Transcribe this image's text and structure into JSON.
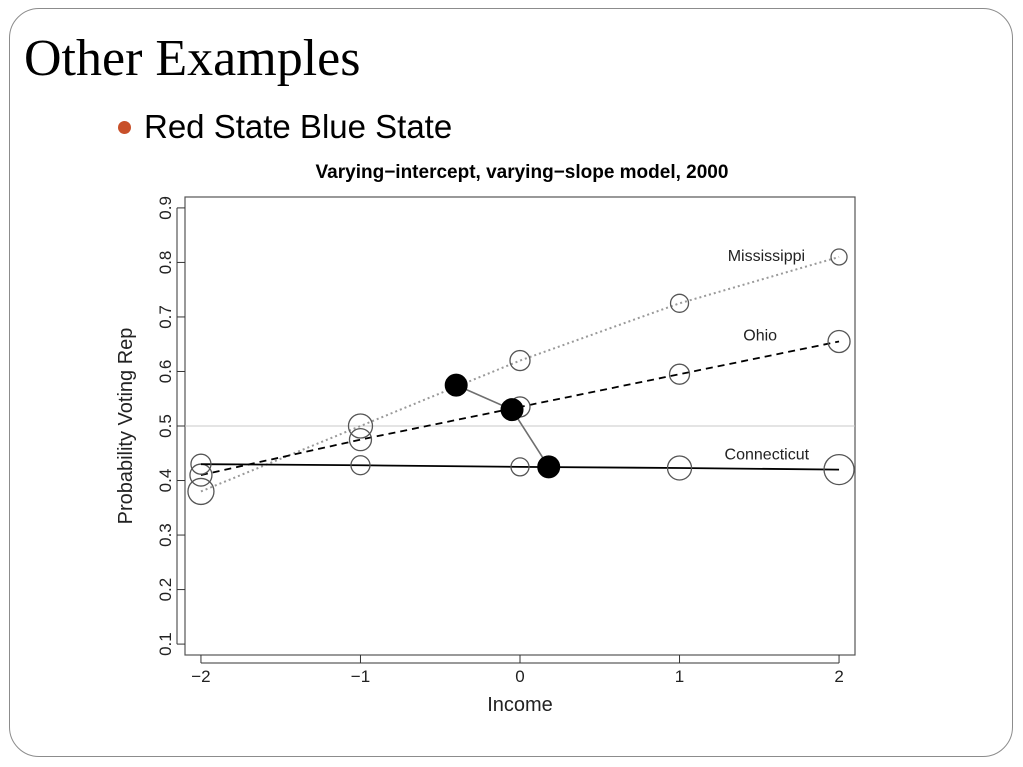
{
  "slide": {
    "title": "Other Examples",
    "bullet": "Red State Blue State",
    "bullet_color": "#c8502a"
  },
  "chart_data": {
    "type": "line",
    "title": "Varying−intercept, varying−slope model, 2000",
    "xlabel": "Income",
    "ylabel": "Probability Voting Rep",
    "xlim": [
      -2.1,
      2.1
    ],
    "ylim": [
      0.08,
      0.92
    ],
    "xticks": [
      -2,
      -1,
      0,
      1,
      2
    ],
    "xtick_labels": [
      "−2",
      "−1",
      "0",
      "1",
      "2"
    ],
    "yticks": [
      0.1,
      0.2,
      0.3,
      0.4,
      0.5,
      0.6,
      0.7,
      0.8,
      0.9
    ],
    "ytick_labels": [
      "0.1",
      "0.2",
      "0.3",
      "0.4",
      "0.5",
      "0.6",
      "0.7",
      "0.8",
      "0.9"
    ],
    "reference_line": 0.5,
    "series": [
      {
        "name": "Mississippi",
        "line_style": "dotted",
        "line_color": "#9a9a9a",
        "x": [
          -2,
          -1,
          0,
          1,
          2
        ],
        "y": [
          0.38,
          0.5,
          0.62,
          0.725,
          0.81
        ],
        "marker_scale": [
          1.3,
          1.2,
          1.0,
          0.9,
          0.8
        ]
      },
      {
        "name": "Ohio",
        "line_style": "dashed",
        "line_color": "#000000",
        "x": [
          -2,
          -1,
          0,
          1,
          2
        ],
        "y": [
          0.41,
          0.475,
          0.535,
          0.595,
          0.655
        ],
        "marker_scale": [
          1.1,
          1.1,
          1.0,
          1.0,
          1.1
        ]
      },
      {
        "name": "Connecticut",
        "line_style": "solid",
        "line_color": "#000000",
        "x": [
          -2,
          -1,
          0,
          1,
          2
        ],
        "y": [
          0.43,
          0.428,
          0.425,
          0.423,
          0.42
        ],
        "marker_scale": [
          1.0,
          0.95,
          0.9,
          1.2,
          1.5
        ]
      }
    ],
    "state_means": {
      "x": [
        -0.4,
        -0.05,
        0.18
      ],
      "y": [
        0.575,
        0.53,
        0.425
      ],
      "line_color": "#6f6f6f"
    }
  }
}
